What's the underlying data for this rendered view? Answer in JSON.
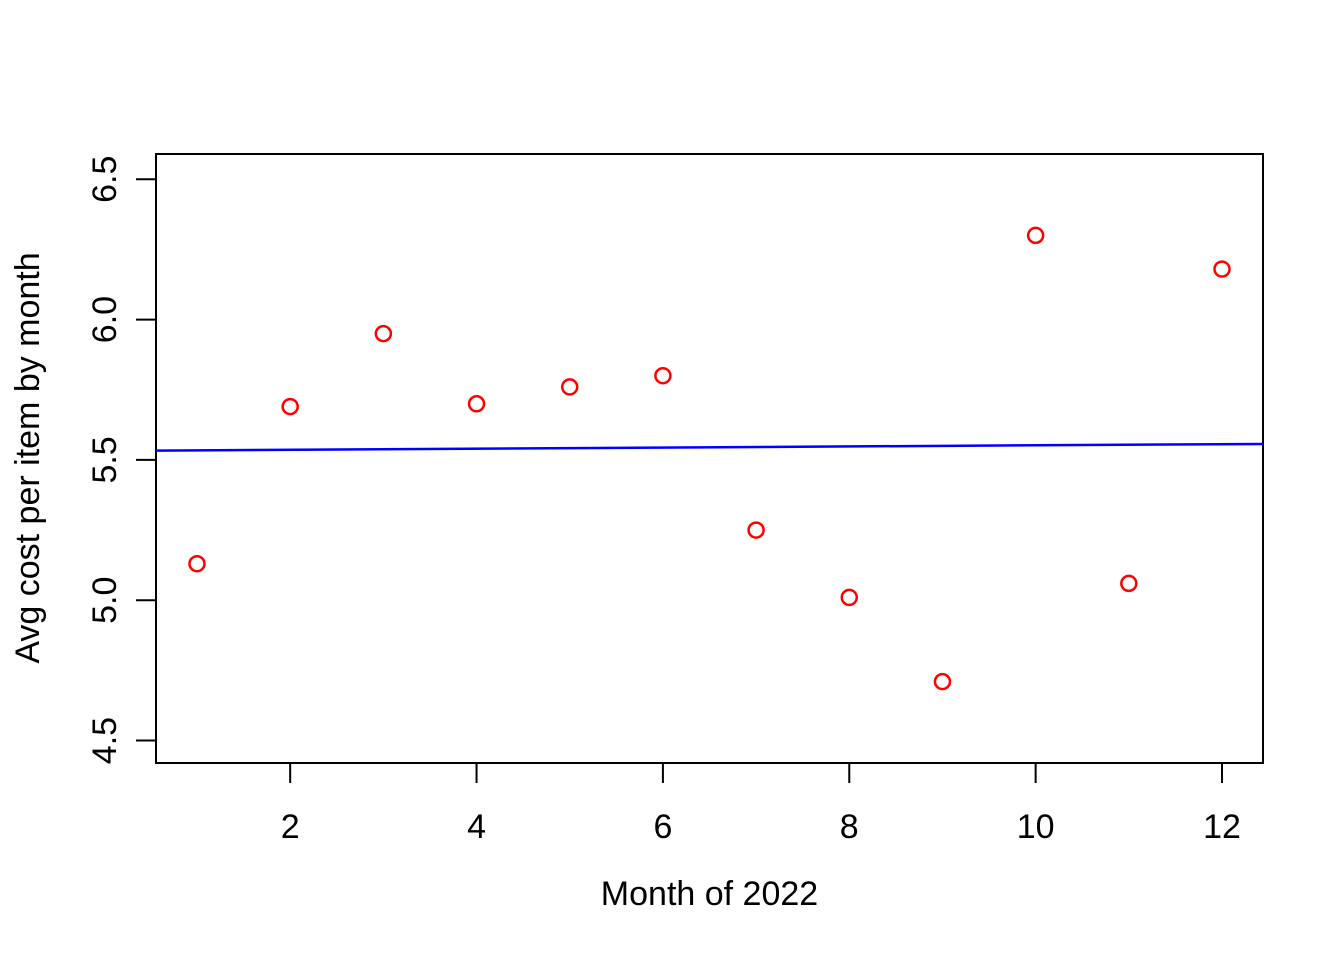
{
  "page": {
    "background": "#ffffff"
  },
  "chart_data": {
    "type": "scatter",
    "title": "",
    "xlabel": "Month of 2022",
    "ylabel": "Avg cost per item by month",
    "x": [
      1,
      2,
      3,
      4,
      5,
      6,
      7,
      8,
      9,
      10,
      11,
      12
    ],
    "y": [
      5.13,
      5.69,
      5.95,
      5.7,
      5.76,
      5.8,
      5.25,
      5.01,
      4.71,
      6.3,
      5.06,
      6.18
    ],
    "x_tick_values": [
      2,
      4,
      6,
      8,
      10,
      12
    ],
    "x_tick_labels": [
      "2",
      "4",
      "6",
      "8",
      "10",
      "12"
    ],
    "y_tick_values": [
      4.5,
      5.0,
      5.5,
      6.0,
      6.5
    ],
    "y_tick_labels": [
      "4.5",
      "5.0",
      "5.5",
      "6.0",
      "6.5"
    ],
    "xlim": [
      0.56,
      12.44
    ],
    "ylim": [
      4.42,
      6.59
    ],
    "grid": false,
    "legend": false,
    "marker": {
      "shape": "open-circle",
      "color": "#FF0000"
    },
    "trend_line": {
      "type": "linear-fit",
      "color": "#0000FF",
      "intercept": 5.532,
      "slope": 0.002
    },
    "axis_color": "#000000"
  }
}
